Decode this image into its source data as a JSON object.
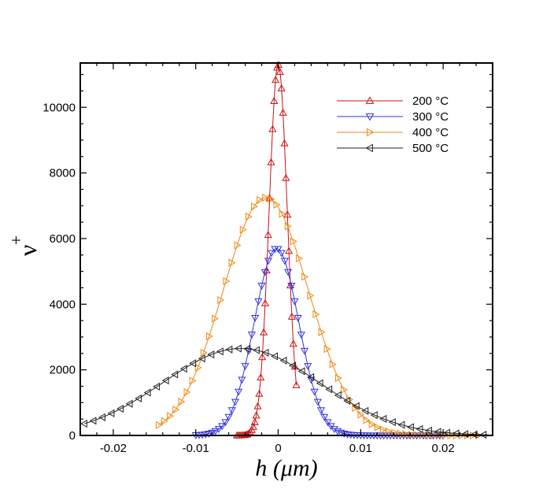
{
  "chart_data": {
    "type": "line",
    "xlabel": "h  (μm)",
    "ylabel": "ν+",
    "xlim": [
      -0.024,
      0.026
    ],
    "ylim": [
      0,
      11350
    ],
    "x_ticks": [
      -0.02,
      -0.01,
      0,
      0.01,
      0.02
    ],
    "x_tick_labels": [
      "-0.02",
      "-0.01",
      "0",
      "0.01",
      "0.02"
    ],
    "y_ticks": [
      0,
      2000,
      4000,
      6000,
      8000,
      10000
    ],
    "y_tick_labels": [
      "0",
      "2000",
      "4000",
      "6000",
      "8000",
      "10000"
    ],
    "grid": false,
    "legend_position": "top-right",
    "series": [
      {
        "name": "200  °C",
        "color": "#cc1111",
        "marker": "triangle-up",
        "center": 0.0,
        "sigma": 0.0011,
        "peak": 11300,
        "x_range": [
          -0.005,
          0.0022
        ]
      },
      {
        "name": "300  °C",
        "color": "#3333dd",
        "marker": "triangle-down",
        "center": -0.0002,
        "sigma": 0.0027,
        "peak": 5700,
        "x_range": [
          -0.01,
          0.02
        ]
      },
      {
        "name": "400  °C",
        "color": "#ee8811",
        "marker": "triangle-right",
        "center": -0.0015,
        "sigma": 0.0052,
        "peak": 7250,
        "x_range": [
          -0.0145,
          0.0245
        ]
      },
      {
        "name": "500  °C",
        "color": "#222222",
        "marker": "triangle-left",
        "center": -0.0045,
        "sigma": 0.0095,
        "peak": 2650,
        "x_range": [
          -0.0235,
          0.0255
        ]
      }
    ]
  }
}
